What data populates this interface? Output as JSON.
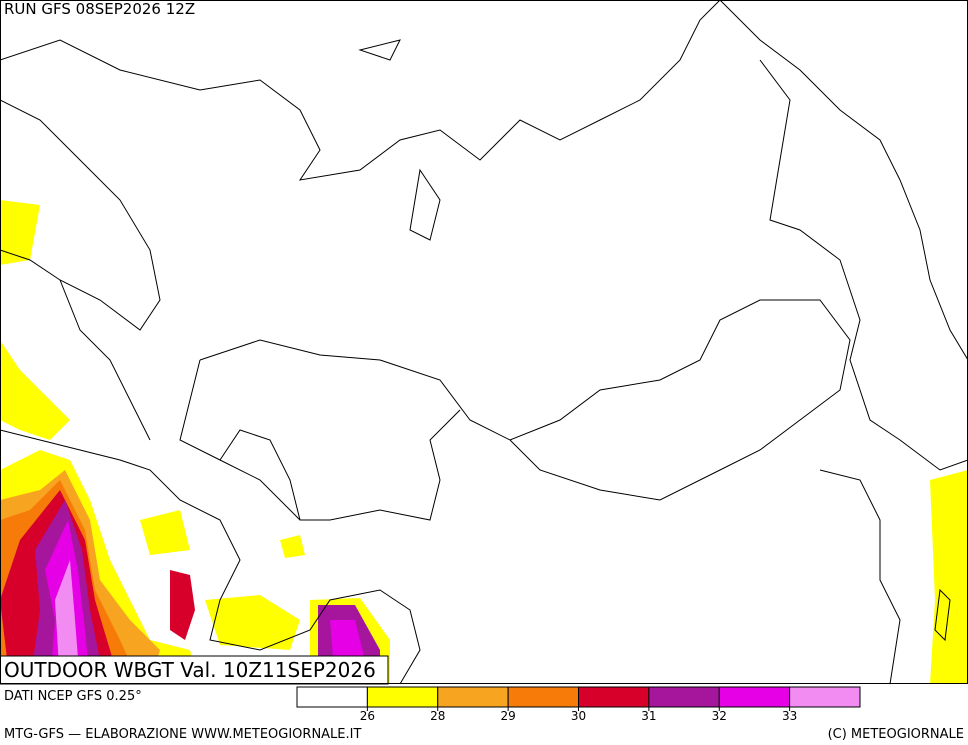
{
  "header": {
    "run": "RUN GFS 08SEP2026 12Z"
  },
  "map": {
    "title": "OUTDOOR WBGT Val. 10Z11SEP2026"
  },
  "legend": {
    "source": "DATI NCEP GFS 0.25°",
    "colors": [
      "#ffffff",
      "#ffff00",
      "#f7a521",
      "#f77b08",
      "#d6002b",
      "#a5169c",
      "#e600e6",
      "#f28cf2"
    ],
    "ticks": [
      26,
      28,
      29,
      30,
      31,
      32,
      33
    ]
  },
  "footer": {
    "left": "MTG-GFS — ELABORAZIONE WWW.METEOGIORNALE.IT",
    "right": "(C) METEOGIORNALE"
  }
}
